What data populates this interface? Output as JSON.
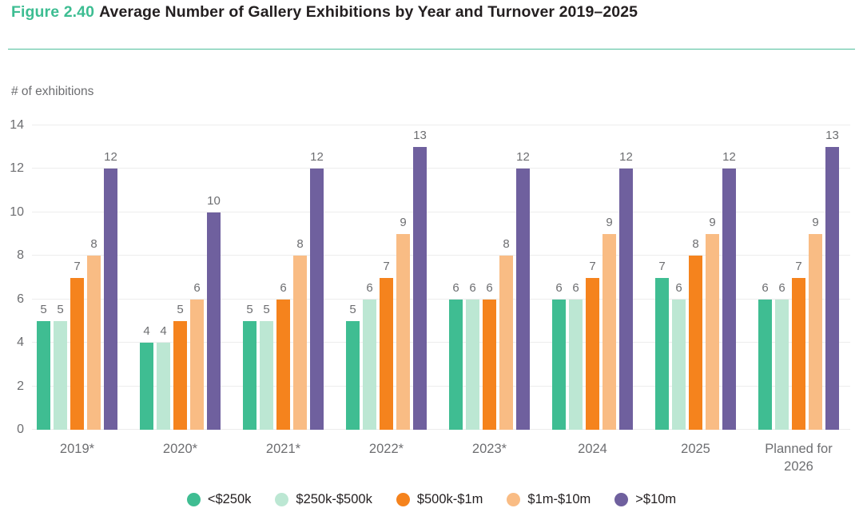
{
  "header": {
    "figure_label": "Figure 2.40",
    "title": "Average Number of Gallery Exhibitions by Year and Turnover 2019–2025"
  },
  "colors": {
    "accent_green": "#3DBD92",
    "divider": "#4FBF9C",
    "text_dark": "#231F20",
    "text_gray": "#6D6E71",
    "gridline": "#EDEDED"
  },
  "chart_data": {
    "type": "bar",
    "title": "Average Number of Gallery Exhibitions by Year and Turnover 2019–2025",
    "xlabel": "",
    "ylabel": "# of exhibitions",
    "ylim": [
      0,
      14
    ],
    "yticks": [
      0,
      2,
      4,
      6,
      8,
      10,
      12,
      14
    ],
    "grid": "horizontal",
    "value_labels": true,
    "legend_position": "bottom",
    "categories": [
      "2019*",
      "2020*",
      "2021*",
      "2022*",
      "2023*",
      "2024",
      "2025",
      "Planned for 2026"
    ],
    "series": [
      {
        "name": "<$250k",
        "color": "#3FBD92",
        "values": [
          5,
          4,
          5,
          5,
          6,
          6,
          7,
          6
        ]
      },
      {
        "name": "$250k-$500k",
        "color": "#BCE7D3",
        "values": [
          5,
          4,
          5,
          6,
          6,
          6,
          6,
          6
        ]
      },
      {
        "name": "$500k-$1m",
        "color": "#F5831D",
        "values": [
          7,
          5,
          6,
          7,
          6,
          7,
          8,
          7
        ]
      },
      {
        "name": "$1m-$10m",
        "color": "#F9BC84",
        "values": [
          8,
          6,
          8,
          9,
          8,
          9,
          9,
          9
        ]
      },
      {
        "name": ">$10m",
        "color": "#6F609E",
        "values": [
          12,
          10,
          12,
          13,
          12,
          12,
          12,
          13
        ]
      }
    ]
  }
}
